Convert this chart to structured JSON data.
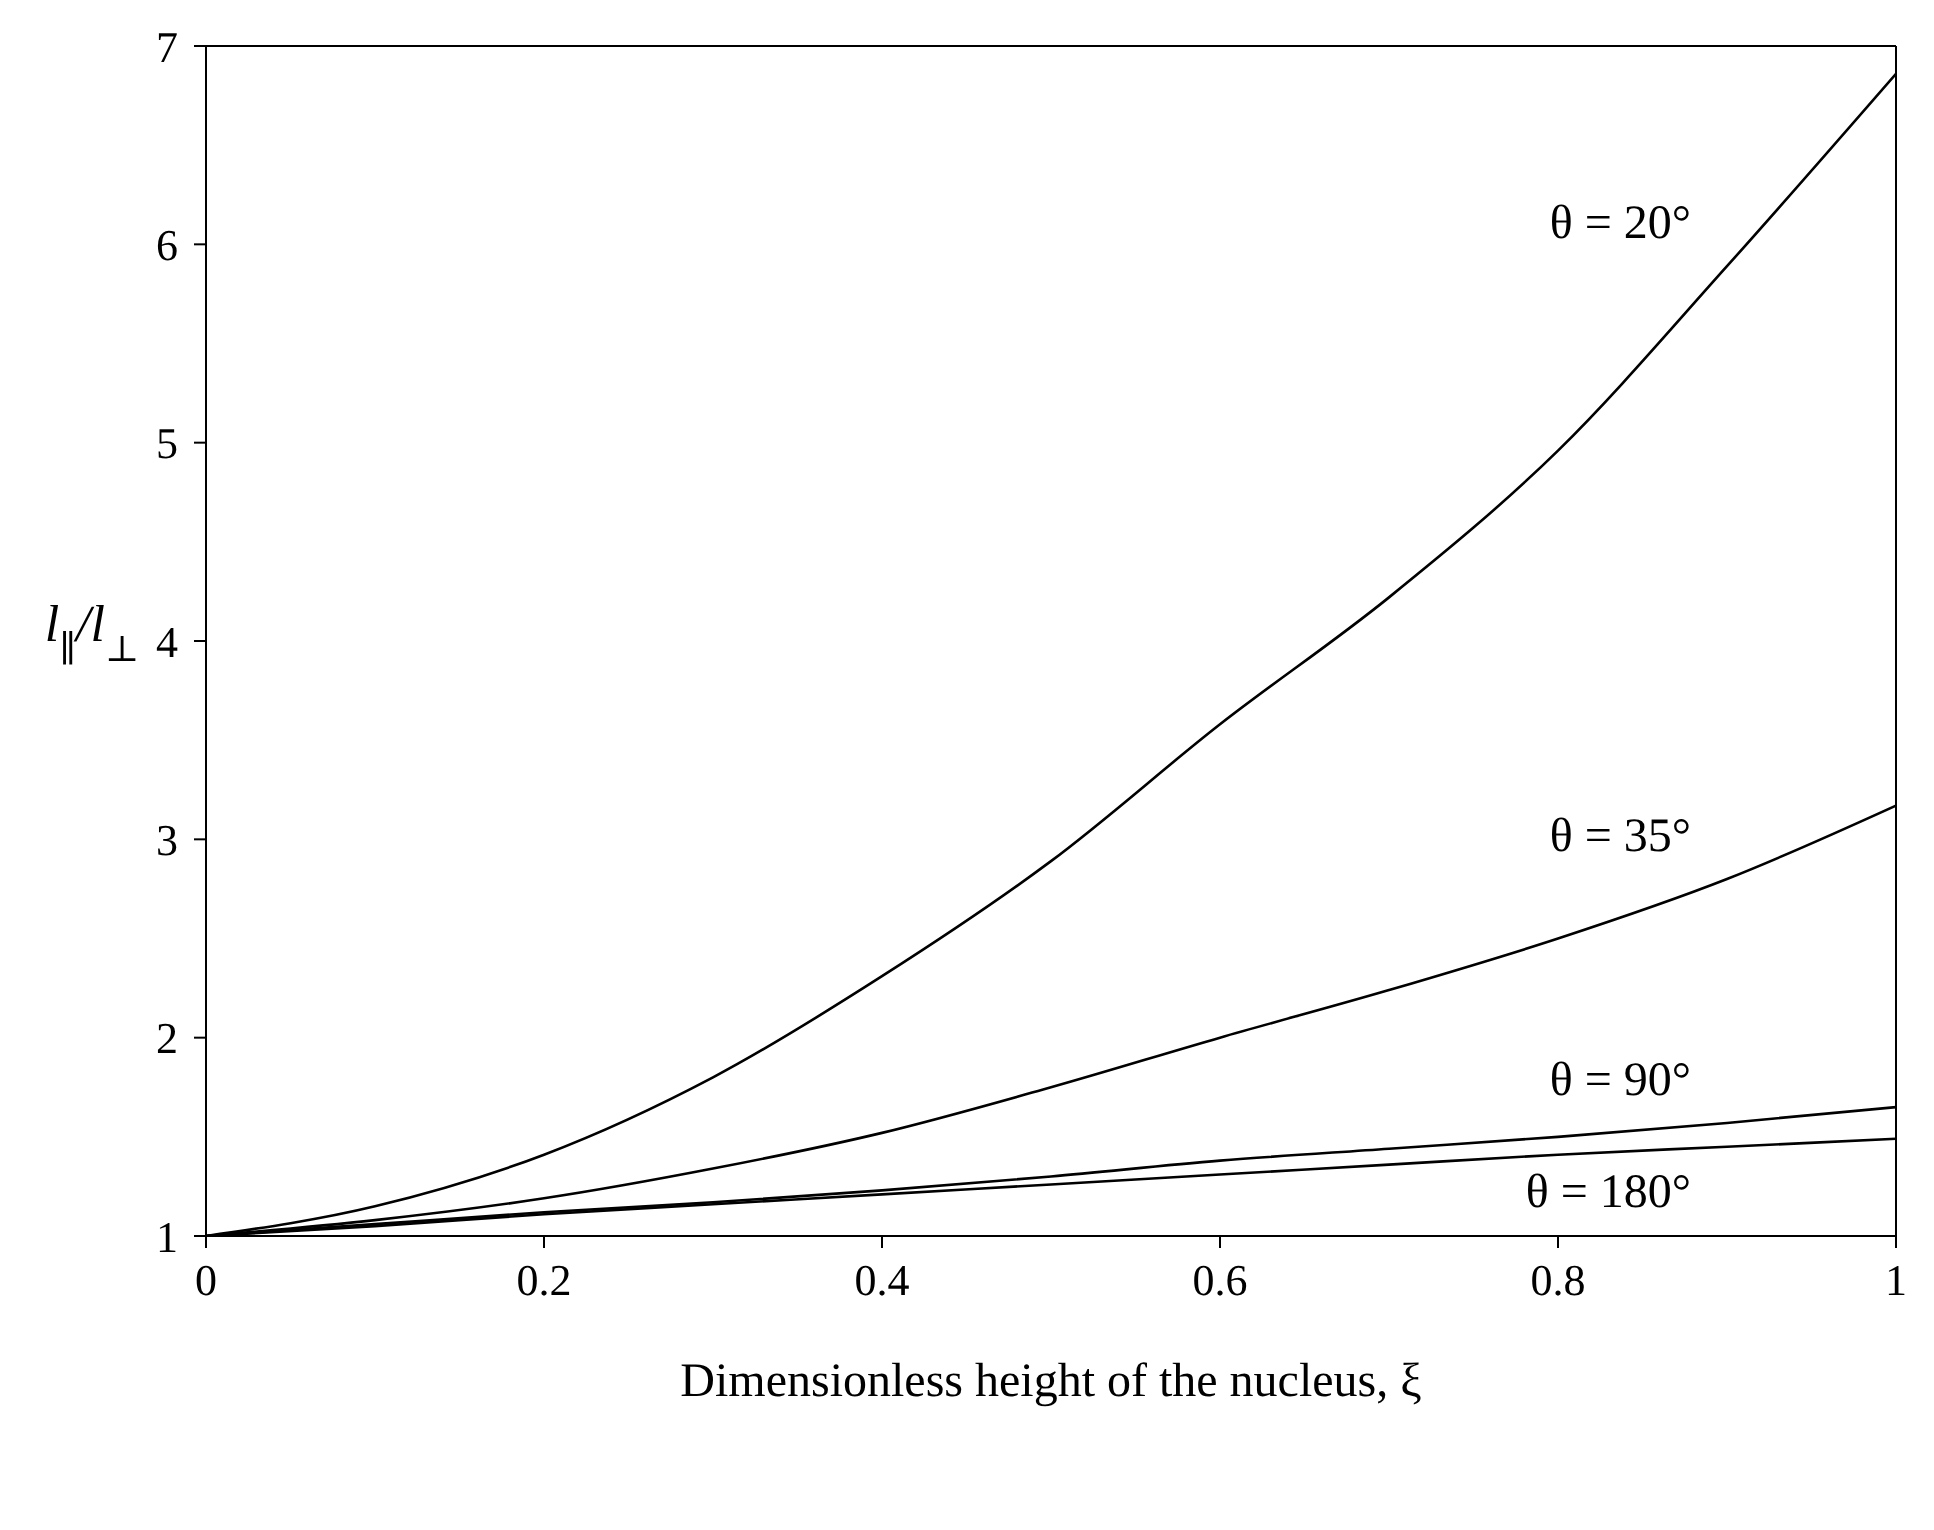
{
  "chart_data": {
    "type": "line",
    "xlabel": "Dimensionless height of the nucleus, ξ",
    "ylabel": "l$_{∥}$/l$_{⊥}$",
    "x": [
      0,
      0.1,
      0.2,
      0.3,
      0.4,
      0.5,
      0.6,
      0.7,
      0.8,
      0.9,
      1
    ],
    "xlim": [
      0,
      1
    ],
    "xticks": [
      0,
      0.2,
      0.4,
      0.6,
      0.8,
      1
    ],
    "ylim": [
      1,
      7
    ],
    "yticks": [
      1,
      2,
      3,
      4,
      5,
      6,
      7
    ],
    "grid": false,
    "legend": false,
    "marker": "none",
    "line_style": "solid",
    "series": [
      {
        "name": "θ = 20°",
        "color": "#000000",
        "values": [
          1,
          1.15,
          1.41,
          1.8,
          2.31,
          2.89,
          3.58,
          4.22,
          4.96,
          5.89,
          6.86
        ]
      },
      {
        "name": "θ = 35°",
        "color": "#000000",
        "values": [
          1,
          1.08,
          1.19,
          1.34,
          1.52,
          1.75,
          2.0,
          2.24,
          2.5,
          2.8,
          3.17
        ]
      },
      {
        "name": "θ = 90°",
        "color": "#000000",
        "values": [
          1,
          1.06,
          1.12,
          1.17,
          1.23,
          1.3,
          1.38,
          1.44,
          1.5,
          1.57,
          1.65
        ]
      },
      {
        "name": "θ = 180°",
        "color": "#000000",
        "values": [
          1,
          1.05,
          1.11,
          1.16,
          1.21,
          1.26,
          1.31,
          1.36,
          1.41,
          1.45,
          1.49
        ]
      }
    ]
  }
}
